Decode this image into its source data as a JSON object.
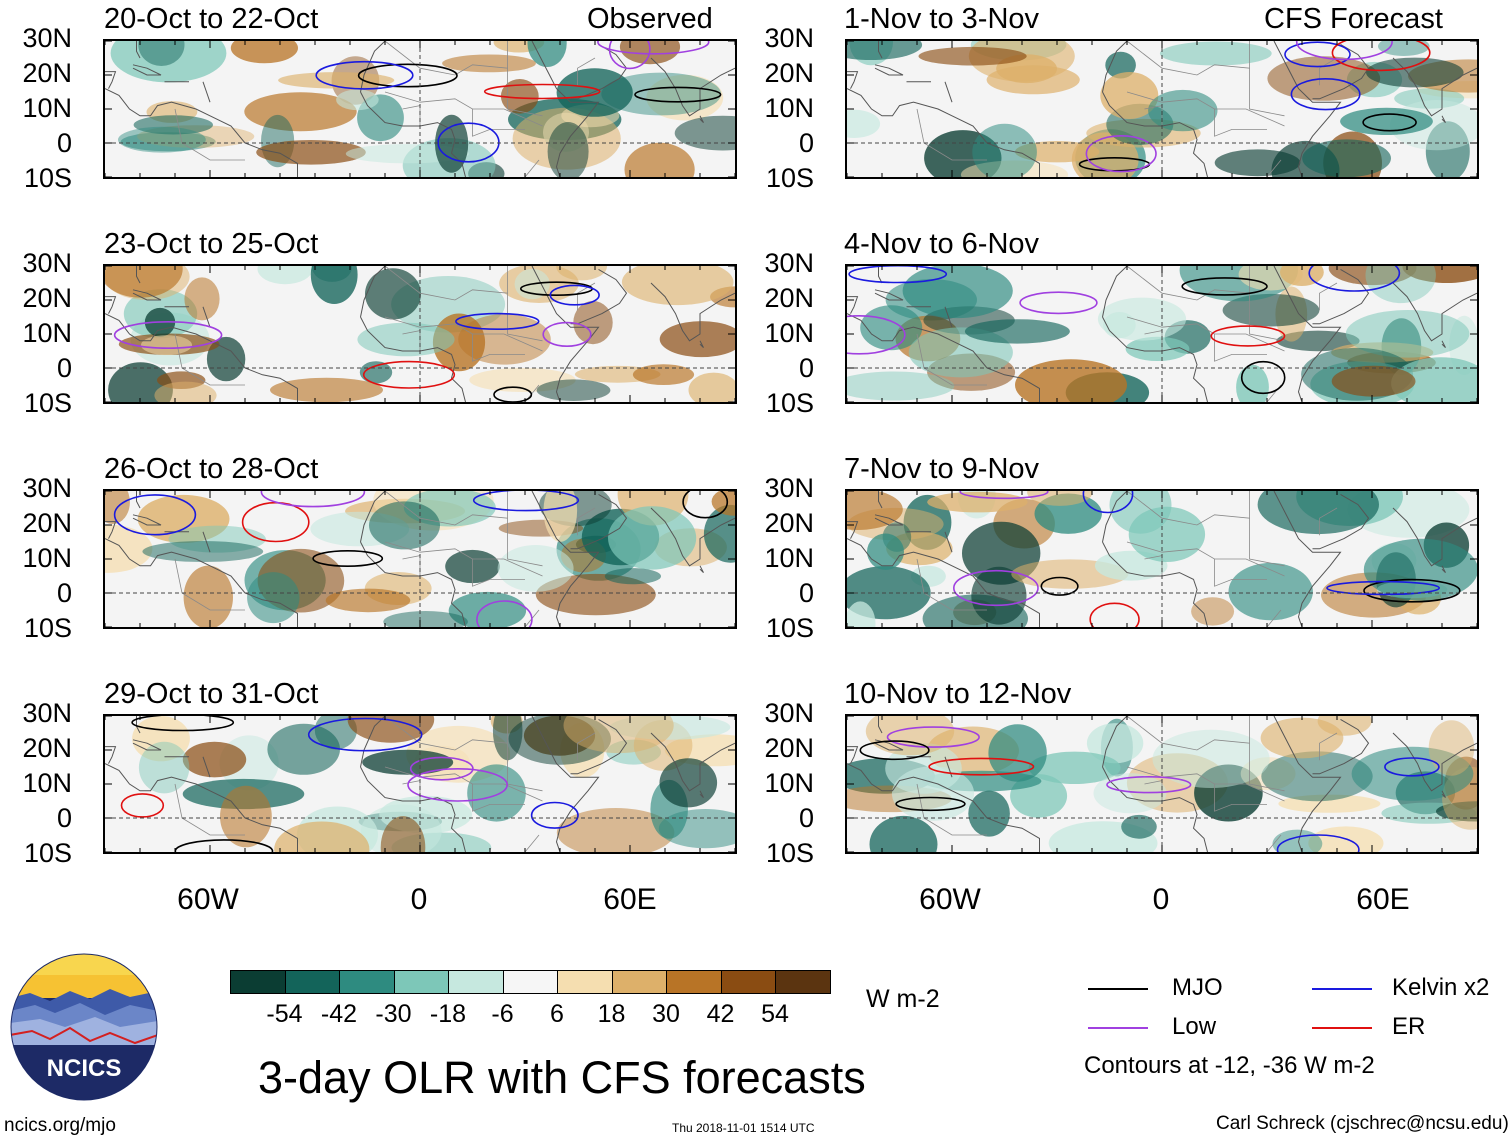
{
  "header": {
    "left_label": "Observed",
    "right_label": "CFS Forecast"
  },
  "panels": {
    "observed": [
      {
        "title": "20-Oct to 22-Oct"
      },
      {
        "title": "23-Oct to 25-Oct"
      },
      {
        "title": "26-Oct to 28-Oct"
      },
      {
        "title": "29-Oct to 31-Oct"
      }
    ],
    "forecast": [
      {
        "title": "1-Nov to 3-Nov"
      },
      {
        "title": "4-Nov to 6-Nov"
      },
      {
        "title": "7-Nov to 9-Nov"
      },
      {
        "title": "10-Nov to 12-Nov"
      }
    ]
  },
  "axes": {
    "lat_labels": [
      "30N",
      "20N",
      "10N",
      "0",
      "10S"
    ],
    "lon_labels": [
      "60W",
      "0",
      "60E"
    ],
    "lat_range": [
      -10,
      30
    ],
    "lon_range": [
      -90,
      90
    ]
  },
  "colorbar": {
    "labels": [
      "-54",
      "-42",
      "-30",
      "-18",
      "-6",
      "6",
      "18",
      "30",
      "42",
      "54"
    ],
    "colors": [
      "#0b3d33",
      "#13645a",
      "#2e8b80",
      "#7dc7b8",
      "#c6e8df",
      "#f6f6f6",
      "#f5deb0",
      "#ddb06a",
      "#b87426",
      "#8a4c12",
      "#5b3410"
    ],
    "units": "W m-2"
  },
  "legend": {
    "items": [
      {
        "label": "MJO",
        "color": "#000000"
      },
      {
        "label": "Kelvin x2",
        "color": "#1a1adf"
      },
      {
        "label": "Low",
        "color": "#a040e0"
      },
      {
        "label": "ER",
        "color": "#e01010"
      }
    ],
    "note": "Contours at -12, -36 W m-2"
  },
  "footer": {
    "title": "3-day OLR with CFS forecasts",
    "logo_text": "NCICS",
    "website": "ncics.org/mjo",
    "timestamp": "Thu 2018-11-01 1514 UTC",
    "credit": "Carl Schreck (cjschrec@ncsu.edu)"
  }
}
